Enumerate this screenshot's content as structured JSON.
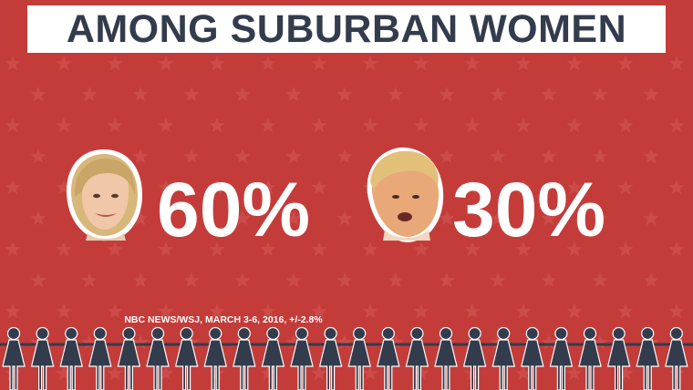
{
  "title": "AMONG SUBURBAN WOMEN",
  "candidates": [
    {
      "portrait_icon": "woman-portrait-icon",
      "percent_label": "60%",
      "percent_value": 60
    },
    {
      "portrait_icon": "man-portrait-icon",
      "percent_label": "30%",
      "percent_value": 30
    }
  ],
  "source": "NBC NEWS/WSJ, MARCH 3-6, 2016, +/-2.8%",
  "decor": {
    "background_color": "#c43c3a",
    "star_color": "#cd4b48",
    "title_box_color": "#ffffff",
    "title_text_color": "#333c4c",
    "figure_color": "#333c4c",
    "figure_outline_color": "#ffffff",
    "figure_icon": "woman-figure-icon",
    "star_icon": "star-icon"
  }
}
